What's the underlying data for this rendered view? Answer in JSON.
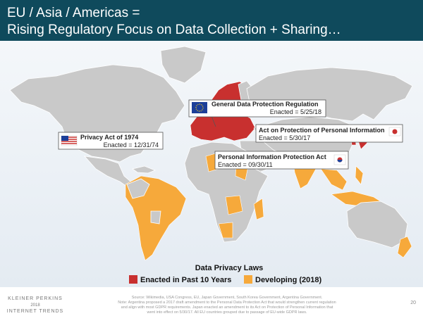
{
  "header": {
    "title": [
      "EU / Asia / Americas =",
      "Rising Regulatory Focus on Data Collection + Sharing…"
    ]
  },
  "callouts": [
    {
      "title": "General Data Protection Regulation",
      "enacted": "Enacted = 5/25/18"
    },
    {
      "title": "Privacy Act of 1974",
      "enacted": "Enacted = 12/31/74"
    },
    {
      "title": "Act on Protection of Personal Information",
      "enacted": "Enacted = 5/30/17"
    },
    {
      "title": "Personal Information Protection Act",
      "enacted": "Enacted = 09/30/11"
    }
  ],
  "legend": {
    "title": "Data Privacy Laws",
    "items": [
      "Enacted in Past 10 Years",
      "Developing (2018)"
    ]
  },
  "source": [
    "Source: Wikimedia, USA Congress, EU, Japan Government, South Korea Government, Argentina Government.",
    "Note: Argentina proposed a 2017 draft amendment to the Personal Data Protection Act that would strengthen current regulation",
    "and align with most GDPR requirements. Japan enacted an amendment to its Act on Protection of Personal Information that",
    "went into effect on 5/30/17. All EU countries grouped due to passage of EU-wide GDPR laws."
  ],
  "footer": {
    "brand": [
      "KLEINER PERKINS",
      "2018",
      "INTERNET TRENDS"
    ],
    "page": "20"
  }
}
